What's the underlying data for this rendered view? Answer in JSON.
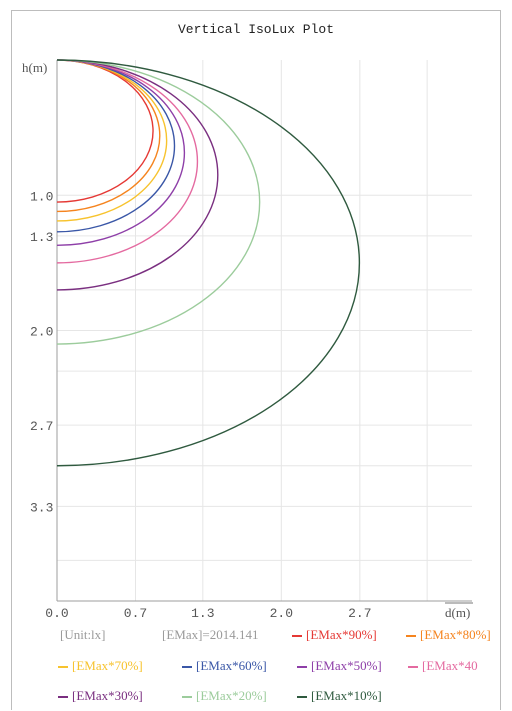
{
  "chart_data": {
    "type": "line",
    "title": "Vertical IsoLux Plot",
    "xlabel": "d(m)",
    "ylabel": "h(m)",
    "xlim": [
      0,
      3.7
    ],
    "ylim": [
      0,
      4.0
    ],
    "y_inverted": true,
    "grid": true,
    "x_ticks": [
      "0.0",
      "0.7",
      "1.3",
      "2.0",
      "2.7"
    ],
    "y_ticks": [
      "1.0",
      "1.3",
      "2.0",
      "2.7",
      "3.3"
    ],
    "unit_label": "[Unit:lx]",
    "emax_label": "[EMax]=2014.141",
    "series": [
      {
        "name": "[EMax*90%]",
        "color": "#e53935",
        "depth": 1.05
      },
      {
        "name": "[EMax*80%]",
        "color": "#f5841f",
        "depth": 1.12
      },
      {
        "name": "[EMax*70%]",
        "color": "#f7c32e",
        "depth": 1.19
      },
      {
        "name": "[EMax*60%]",
        "color": "#3a57a7",
        "depth": 1.27
      },
      {
        "name": "[EMax*50%]",
        "color": "#8e3fa8",
        "depth": 1.37
      },
      {
        "name": "[EMax*40",
        "color": "#e46aa0",
        "depth": 1.5
      },
      {
        "name": "[EMax*30%]",
        "color": "#7a2f80",
        "depth": 1.7
      },
      {
        "name": "[EMax*20%]",
        "color": "#9ccc9c",
        "depth": 2.1
      },
      {
        "name": "[EMax*10%]",
        "color": "#2f5a3f",
        "depth": 3.0
      }
    ]
  }
}
